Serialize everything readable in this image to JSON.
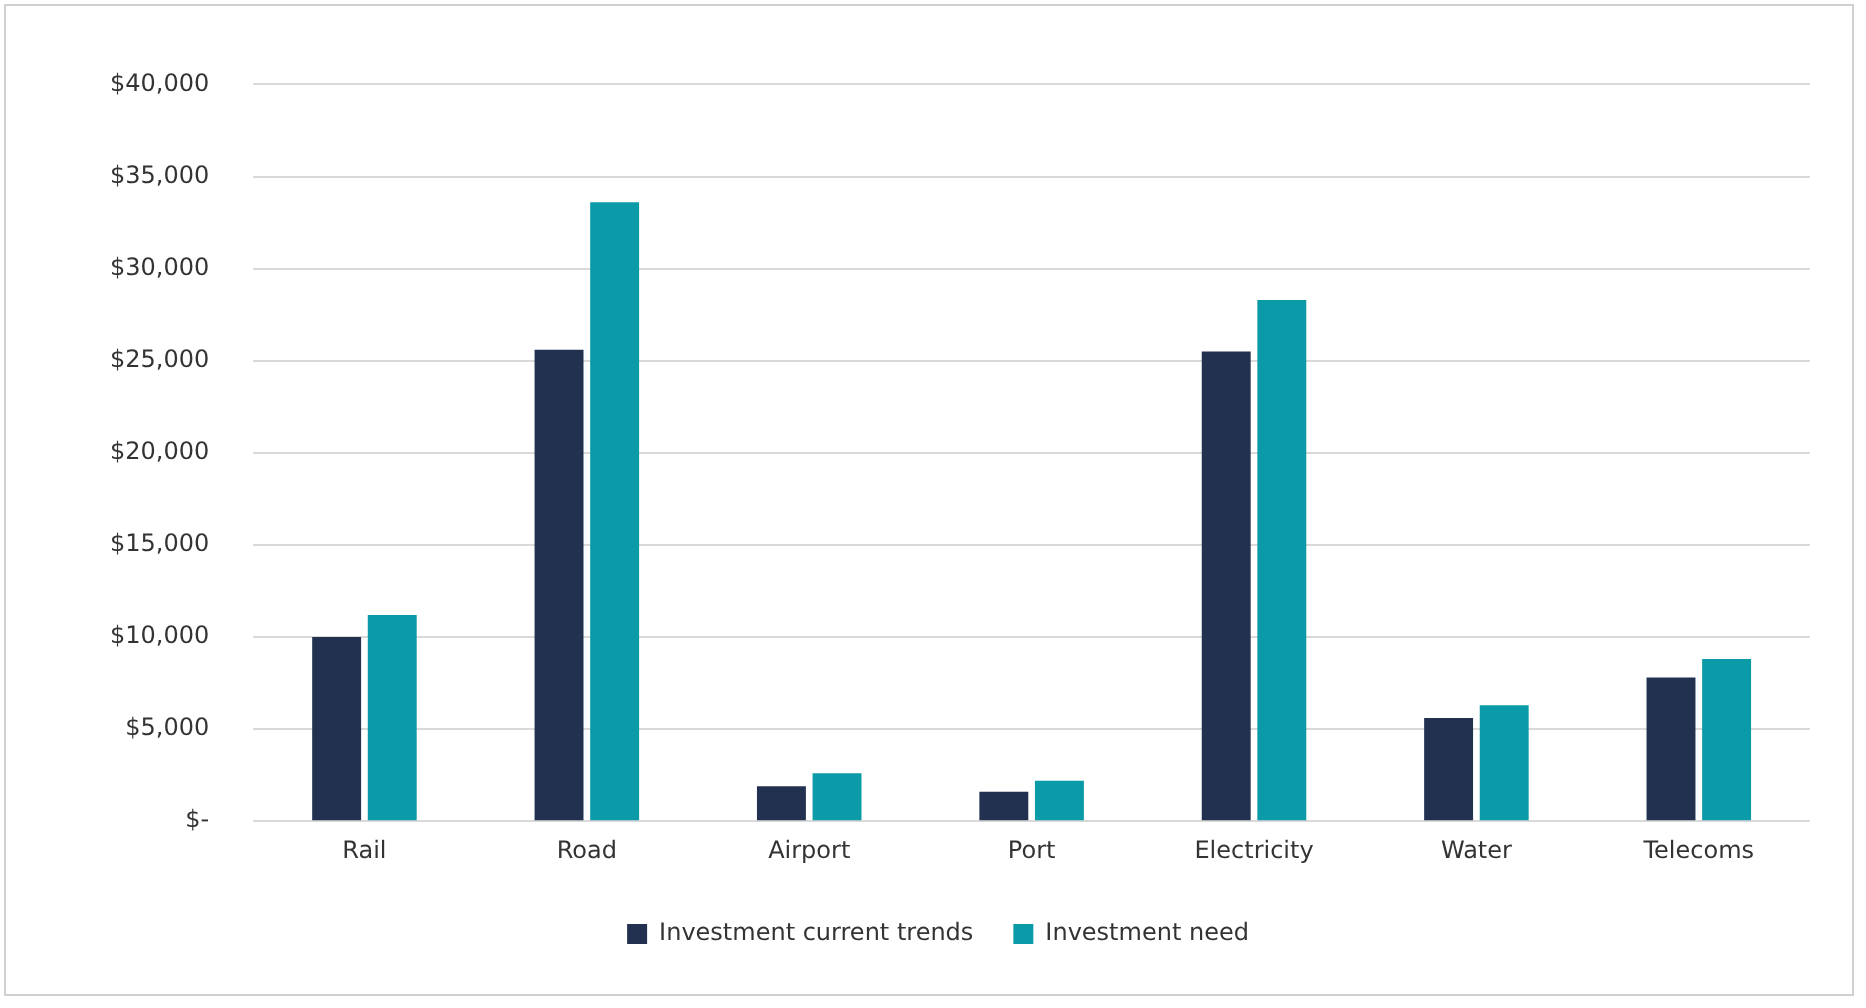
{
  "chart_data": {
    "type": "bar",
    "categories": [
      "Rail",
      "Road",
      "Airport",
      "Port",
      "Electricity",
      "Water",
      "Telecoms"
    ],
    "series": [
      {
        "name": "Investment current trends",
        "color": "#22314f",
        "values": [
          10000,
          25600,
          1900,
          1600,
          25500,
          5600,
          7800
        ]
      },
      {
        "name": "Investment need",
        "color": "#0b9ba8",
        "values": [
          11200,
          33600,
          2600,
          2200,
          28300,
          6300,
          8800
        ]
      }
    ],
    "ylim": [
      0,
      40000
    ],
    "yticks": [
      {
        "value": 0,
        "label": "$-"
      },
      {
        "value": 5000,
        "label": "$5,000"
      },
      {
        "value": 10000,
        "label": "$10,000"
      },
      {
        "value": 15000,
        "label": "$15,000"
      },
      {
        "value": 20000,
        "label": "$20,000"
      },
      {
        "value": 25000,
        "label": "$25,000"
      },
      {
        "value": 30000,
        "label": "$30,000"
      },
      {
        "value": 35000,
        "label": "$35,000"
      },
      {
        "value": 40000,
        "label": "$40,000"
      }
    ],
    "grid": "y",
    "legend": "bottom"
  }
}
